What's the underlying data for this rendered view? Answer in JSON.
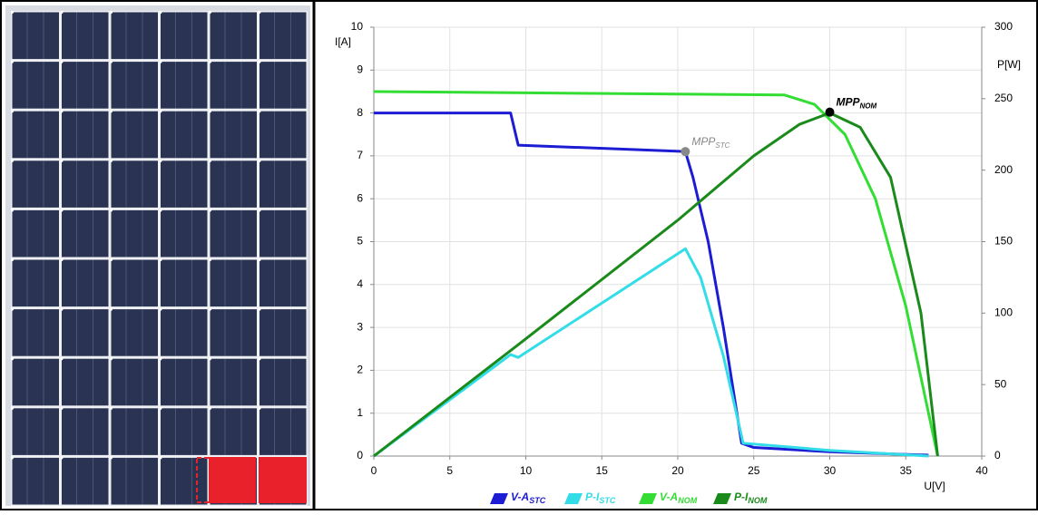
{
  "chart_data": {
    "type": "line",
    "x_label": "U[V]",
    "y_label": "I[A]",
    "y2_label": "P[W]",
    "xlim": [
      0,
      40
    ],
    "xticks": [
      0,
      5,
      10,
      15,
      20,
      25,
      30,
      35,
      40
    ],
    "ylim": [
      0,
      10
    ],
    "yticks": [
      0,
      1,
      2,
      3,
      4,
      5,
      6,
      7,
      8,
      9,
      10
    ],
    "y2lim": [
      0,
      300
    ],
    "y2ticks": [
      0,
      50,
      100,
      150,
      200,
      250,
      300
    ],
    "grid": true,
    "legend": "bottom",
    "series": [
      {
        "name": "V-A",
        "name_subscript": "STC",
        "color": "#1c1cd4",
        "x": [
          0,
          9,
          9.5,
          20.5,
          21,
          22,
          23,
          24.2,
          25,
          30,
          36.5
        ],
        "values": [
          8,
          8,
          7.25,
          7.1,
          6.5,
          5,
          3,
          0.3,
          0.2,
          0.1,
          0.02
        ]
      },
      {
        "name": "P-I",
        "name_subscript": "STC",
        "color": "#33dde8",
        "axis": "y2",
        "x": [
          0,
          9,
          9.5,
          20.5,
          21.5,
          23,
          24.3,
          30,
          36.5
        ],
        "values": [
          0,
          71,
          69,
          145,
          125,
          70,
          9,
          4,
          0
        ]
      },
      {
        "name": "V-A",
        "name_subscript": "NOM",
        "color": "#33dd33",
        "x": [
          0,
          27,
          29,
          31,
          33,
          35,
          36.5,
          37.1
        ],
        "values": [
          8.5,
          8.42,
          8.2,
          7.5,
          6,
          3.5,
          1,
          0
        ]
      },
      {
        "name": "P-I",
        "name_subscript": "NOM",
        "color": "#1a8a1a",
        "axis": "y2",
        "x": [
          0,
          10,
          20,
          25,
          28,
          30,
          32,
          34,
          36,
          37.1
        ],
        "values": [
          0,
          82,
          165,
          210,
          232,
          240,
          230,
          195,
          100,
          0
        ]
      }
    ],
    "annotations": [
      {
        "text": "MPP",
        "subscript": "STC",
        "x": 20.5,
        "y": 7.1,
        "color": "#888888"
      },
      {
        "text": "MPP",
        "subscript": "NOM",
        "x": 30,
        "y": 8.02,
        "color": "#000000"
      }
    ]
  }
}
